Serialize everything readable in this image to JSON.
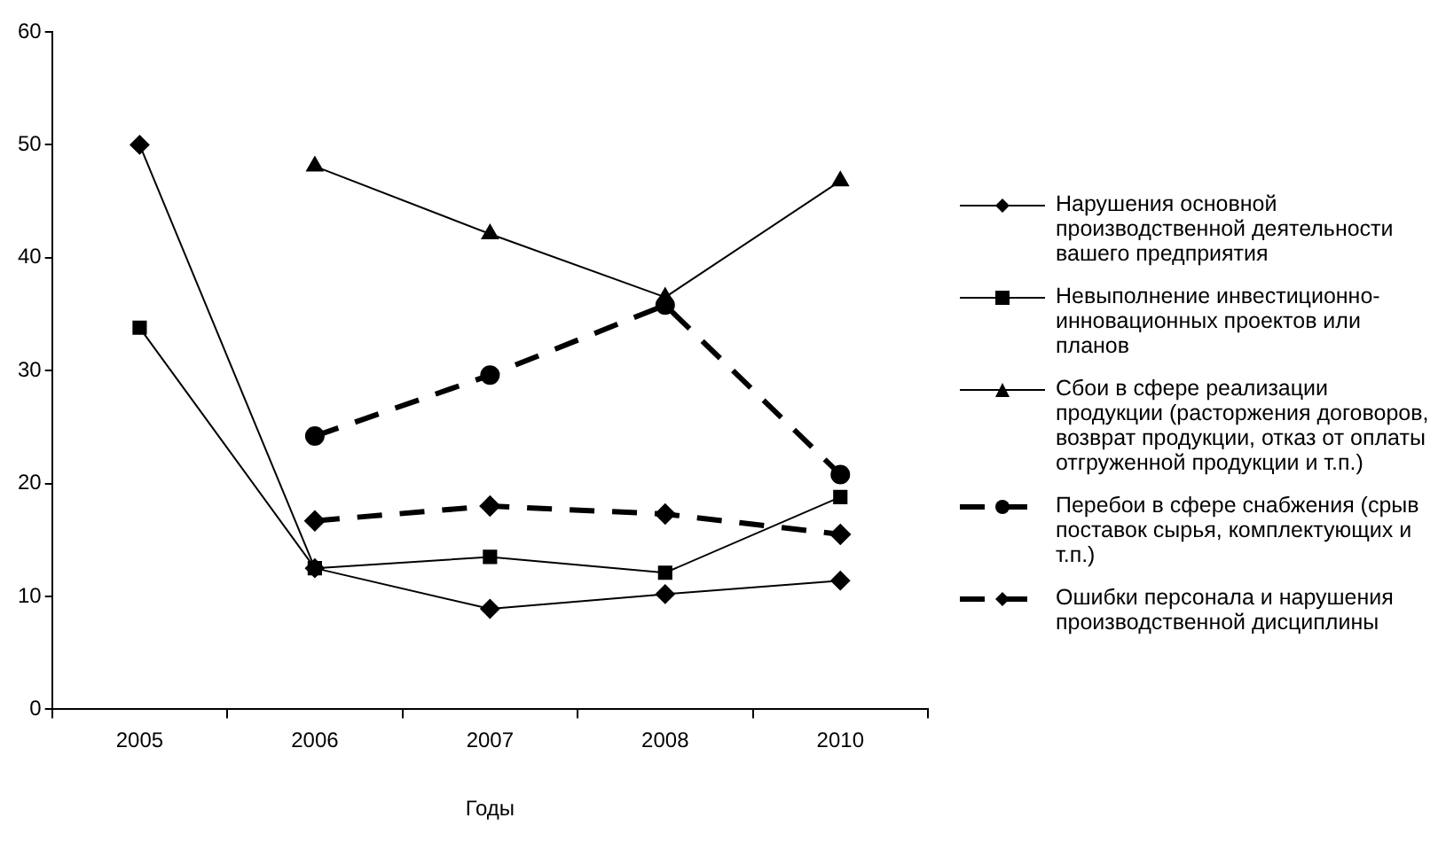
{
  "chart_data": {
    "type": "line",
    "xlabel": "Годы",
    "categories": [
      "2005",
      "2006",
      "2007",
      "2008",
      "2010"
    ],
    "ylim": [
      0,
      60
    ],
    "yticks": [
      0,
      10,
      20,
      30,
      40,
      50,
      60
    ],
    "grid": false,
    "legend": "right",
    "series": [
      {
        "name": "Нарушения основной производственной деятельности вашего предприятия",
        "color": "#000000",
        "marker": "diamond",
        "line_style": "solid",
        "values": [
          50.0,
          12.5,
          8.9,
          10.2,
          11.4
        ]
      },
      {
        "name": "Невыполнение инвестиционно-инновационных проектов или планов",
        "color": "#000000",
        "marker": "square",
        "line_style": "solid",
        "values": [
          33.8,
          12.5,
          13.5,
          12.1,
          18.8
        ]
      },
      {
        "name": "Сбои в сфере реализации продукции (расторжения договоров, возврат продукции, отказ от оплаты отгруженной продукции и т.п.)",
        "color": "#000000",
        "marker": "triangle",
        "line_style": "solid",
        "values": [
          null,
          48.1,
          42.1,
          36.5,
          46.8
        ]
      },
      {
        "name": "Перебои в сфере снабжения (срыв поставок сырья, комплектующих и т.п.)",
        "color": "#000000",
        "marker": "circle",
        "line_style": "dashed",
        "values": [
          null,
          24.2,
          29.6,
          35.8,
          20.8
        ]
      },
      {
        "name": "Ошибки персонала и нарушения производственной дисциплины",
        "color": "#000000",
        "marker": "diamond",
        "line_style": "dashed",
        "values": [
          null,
          16.7,
          18.0,
          17.3,
          15.5
        ]
      }
    ]
  }
}
